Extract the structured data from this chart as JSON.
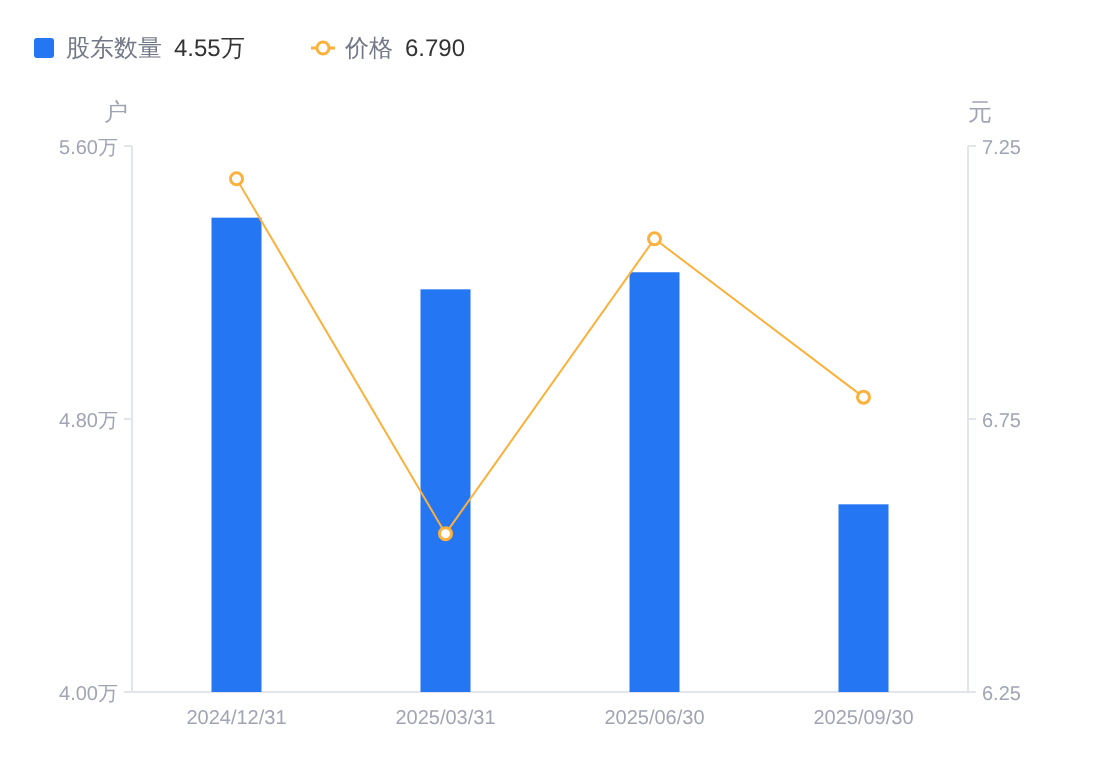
{
  "chart_data": {
    "type": "bar",
    "categories": [
      "2024/12/31",
      "2025/03/31",
      "2025/06/30",
      "2025/09/30"
    ],
    "series": [
      {
        "name": "股东数量",
        "color": "#2476f3",
        "values": [
          5.39,
          5.18,
          5.23,
          4.55
        ]
      },
      {
        "name": "价格",
        "type": "line",
        "axis": "y2",
        "color": "#fbb13c",
        "marker": "circle",
        "values": [
          7.19,
          6.54,
          7.08,
          6.79
        ]
      }
    ],
    "ylabel": "户",
    "y2label": "元",
    "ylim": [
      4.0,
      5.6
    ],
    "yticks": [
      {
        "value": 4.0,
        "label": "4.00万"
      },
      {
        "value": 4.8,
        "label": "4.80万"
      },
      {
        "value": 5.6,
        "label": "5.60万"
      }
    ],
    "y2lim": [
      6.25,
      7.25
    ],
    "y2ticks": [
      {
        "value": 6.25,
        "label": "6.25"
      },
      {
        "value": 6.75,
        "label": "6.75"
      },
      {
        "value": 7.25,
        "label": "7.25"
      }
    ],
    "annotations": [
      "4.55万",
      "6.790"
    ],
    "legend": "top left",
    "grid": false
  }
}
